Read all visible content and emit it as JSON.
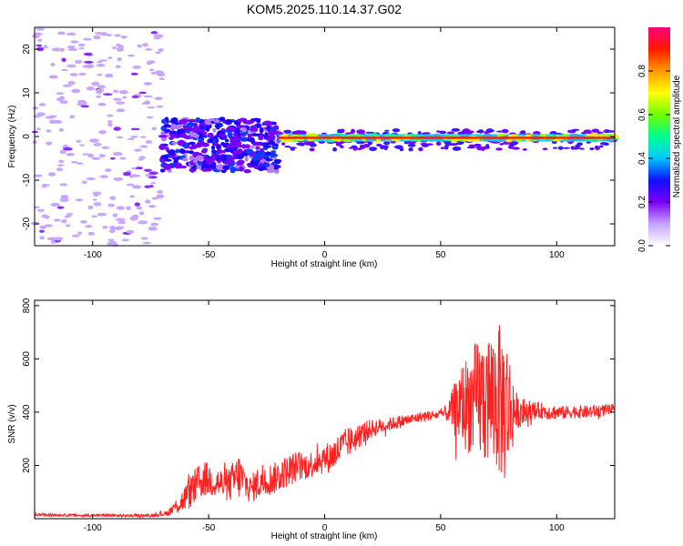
{
  "title": "KOM5.2025.110.14.37.G02",
  "chart_data": [
    {
      "type": "heatmap",
      "xlabel": "Height of straight line (km)",
      "ylabel": "Frequency (Hz)",
      "xlim": [
        -125,
        125
      ],
      "ylim": [
        -25,
        25
      ],
      "xticks": [
        -100,
        -50,
        0,
        50,
        100
      ],
      "yticks": [
        -20,
        -10,
        0,
        10,
        20
      ],
      "colorbar": {
        "label": "Normalized spectral amplitude",
        "ticks": [
          0.0,
          0.2,
          0.4,
          0.6,
          0.8
        ],
        "range": [
          0,
          1
        ],
        "colors": [
          "#ffffff",
          "#c6a2ff",
          "#7a00ff",
          "#1010ff",
          "#00c8ff",
          "#00ff90",
          "#70ff00",
          "#ffff00",
          "#ff9900",
          "#ff1a00",
          "#ff0080"
        ]
      },
      "description_regions": [
        {
          "x_range": [
            -125,
            -70
          ],
          "freq_range": [
            -25,
            25
          ],
          "amplitude": 0.05
        },
        {
          "x_range": [
            -70,
            -20
          ],
          "freq_range": [
            -9,
            5
          ],
          "amplitude": 0.15
        },
        {
          "x_range": [
            -20,
            125
          ],
          "freq_range": [
            -2,
            1
          ],
          "amplitude": 0.6
        }
      ]
    },
    {
      "type": "line",
      "xlabel": "Height of straight line (km)",
      "ylabel": "SNR (v/v)",
      "xlim": [
        -125,
        125
      ],
      "ylim": [
        0,
        820
      ],
      "xticks": [
        -100,
        -50,
        0,
        50,
        100
      ],
      "yticks": [
        200,
        400,
        600,
        800
      ],
      "series": [
        {
          "color": "#ff2020",
          "x": [
            -125,
            -115,
            -105,
            -95,
            -85,
            -75,
            -68,
            -62,
            -57,
            -52,
            -47,
            -42,
            -37,
            -32,
            -27,
            -22,
            -17,
            -12,
            -7,
            -2,
            3,
            8,
            13,
            18,
            23,
            28,
            33,
            38,
            43,
            48,
            53,
            58,
            63,
            68,
            73,
            78,
            83,
            88,
            93,
            98,
            103,
            108,
            113,
            118,
            125
          ],
          "y": [
            15,
            14,
            12,
            13,
            11,
            12,
            20,
            60,
            110,
            150,
            140,
            120,
            160,
            110,
            145,
            150,
            175,
            195,
            200,
            220,
            235,
            275,
            300,
            330,
            345,
            355,
            365,
            375,
            385,
            390,
            395,
            420,
            440,
            450,
            460,
            420,
            400,
            395,
            405,
            400,
            398,
            402,
            400,
            405,
            410
          ],
          "amplitude": [
            6,
            5,
            5,
            5,
            5,
            6,
            10,
            40,
            70,
            70,
            60,
            60,
            90,
            50,
            70,
            60,
            60,
            60,
            50,
            55,
            60,
            60,
            50,
            40,
            30,
            25,
            25,
            20,
            20,
            20,
            30,
            150,
            200,
            250,
            280,
            300,
            60,
            50,
            30,
            30,
            25,
            25,
            25,
            25,
            20
          ]
        }
      ]
    }
  ]
}
